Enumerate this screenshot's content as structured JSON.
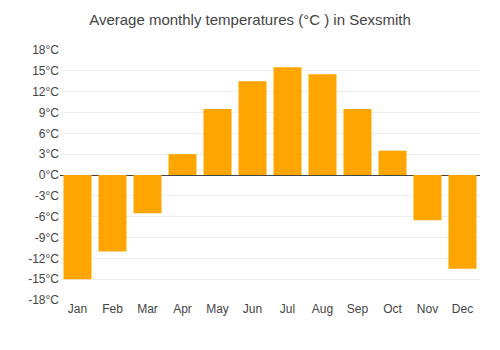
{
  "chart_data": {
    "type": "bar",
    "title": "Average monthly temperatures (°C ) in Sexsmith",
    "categories": [
      "Jan",
      "Feb",
      "Mar",
      "Apr",
      "May",
      "Jun",
      "Jul",
      "Aug",
      "Sep",
      "Oct",
      "Nov",
      "Dec"
    ],
    "values": [
      -15.0,
      -11.0,
      -5.5,
      3.0,
      9.5,
      13.5,
      15.5,
      14.5,
      9.5,
      3.5,
      -6.5,
      -13.5
    ],
    "color": "#FFA500",
    "ylim": [
      -18,
      18
    ],
    "yticks": [
      {
        "value": -18,
        "label": "-18°C"
      },
      {
        "value": -15,
        "label": "-15°C"
      },
      {
        "value": -12,
        "label": "-12°C"
      },
      {
        "value": -9,
        "label": "-9°C"
      },
      {
        "value": -6,
        "label": "-6°C"
      },
      {
        "value": -3,
        "label": "-3°C"
      },
      {
        "value": 0,
        "label": "0°C"
      },
      {
        "value": 3,
        "label": "3°C"
      },
      {
        "value": 6,
        "label": "6°C"
      },
      {
        "value": 9,
        "label": "9°C"
      },
      {
        "value": 12,
        "label": "12°C"
      },
      {
        "value": 15,
        "label": "15°C"
      },
      {
        "value": 18,
        "label": "18°C"
      }
    ],
    "grid": true
  }
}
